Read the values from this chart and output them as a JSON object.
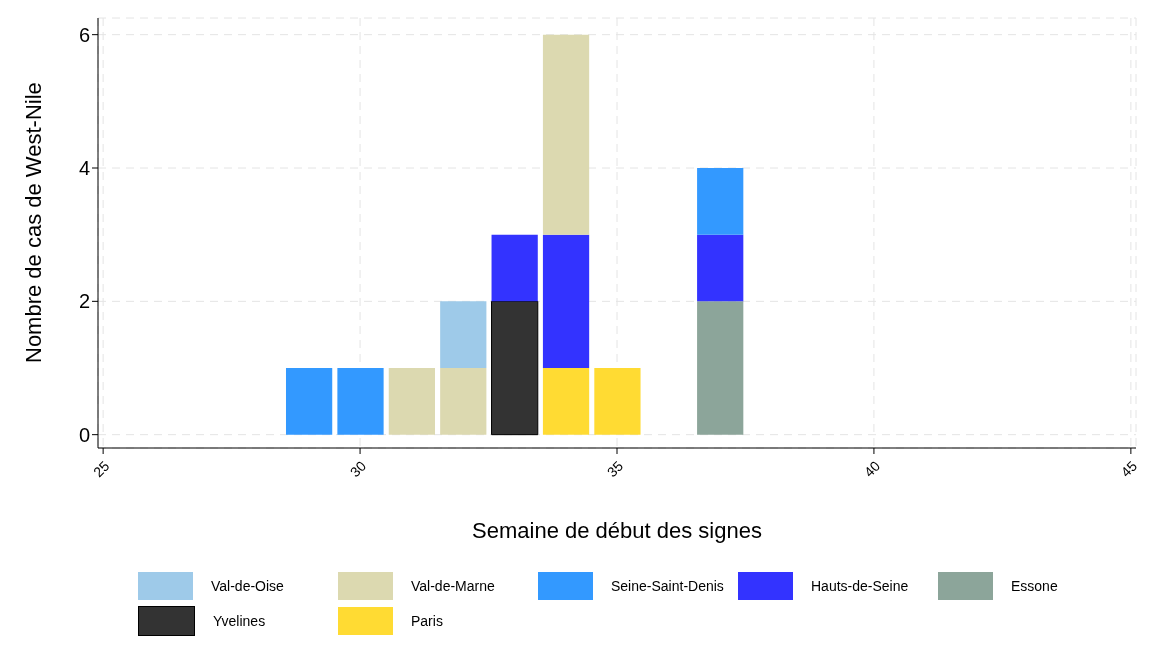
{
  "chart_data": {
    "type": "bar",
    "stacked": true,
    "xlabel": "Semaine de début des signes",
    "ylabel": "Nombre de cas de West-Nile",
    "x": [
      29,
      30,
      31,
      32,
      33,
      34,
      35,
      37
    ],
    "series": [
      {
        "name": "Paris",
        "color": "#ffdb33",
        "values": [
          null,
          null,
          null,
          null,
          null,
          1,
          1,
          null
        ]
      },
      {
        "name": "Yvelines",
        "color": "#333333",
        "values": [
          null,
          null,
          null,
          null,
          2,
          null,
          null,
          null
        ]
      },
      {
        "name": "Essone",
        "color": "#8ca59a",
        "values": [
          null,
          null,
          null,
          null,
          null,
          null,
          null,
          2
        ]
      },
      {
        "name": "Hauts-de-Seine",
        "color": "#3333ff",
        "values": [
          null,
          null,
          null,
          null,
          1,
          2,
          null,
          1
        ]
      },
      {
        "name": "Seine-Saint-Denis",
        "color": "#3399ff",
        "values": [
          1,
          1,
          null,
          null,
          null,
          null,
          null,
          1
        ]
      },
      {
        "name": "Val-de-Marne",
        "color": "#dcd9b0",
        "values": [
          null,
          null,
          1,
          1,
          null,
          3,
          null,
          null
        ]
      },
      {
        "name": "Val-de-Oise",
        "color": "#9ecae9",
        "values": [
          null,
          null,
          null,
          1,
          null,
          null,
          null,
          null
        ]
      }
    ],
    "xlim": [
      24.9,
      45.1
    ],
    "xticks": [
      25,
      30,
      35,
      40,
      45
    ],
    "ylim": [
      -0.2,
      6.25
    ],
    "yticks": [
      0,
      2,
      4,
      6
    ],
    "grid": true,
    "legend": "bottom"
  }
}
